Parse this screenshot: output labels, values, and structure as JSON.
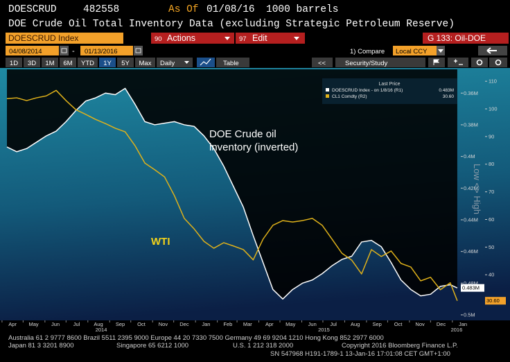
{
  "header": {
    "ticker": "DOESCRUD",
    "id": "482558",
    "as_of_label": "As Of",
    "as_of": "01/08/16",
    "units": "1000 barrels",
    "title": "DOE Crude Oil Total Inventory Data (excluding Strategic Petroleum Reserve)"
  },
  "toolbar": {
    "security": "DOESCRUD Index",
    "actions_num": "90",
    "actions": "Actions",
    "edit_num": "97",
    "edit": "Edit",
    "page": "G 133: Oil-DOE",
    "start": "04/08/2014",
    "dash": "-",
    "end": "01/13/2016",
    "compare": "1) Compare",
    "currency": "Local CCY",
    "ranges": [
      "1D",
      "3D",
      "1M",
      "6M",
      "YTD",
      "1Y",
      "5Y",
      "Max"
    ],
    "active_range": "1Y",
    "frequency": "Daily",
    "table": "Table",
    "back": "<<",
    "study": "Security/Study"
  },
  "chart_data": {
    "type": "line",
    "legend_title": "Last Price",
    "axis_note": "Low <> High",
    "xlim": [
      "2014-04-08",
      "2016-01-13"
    ],
    "xticks": [
      {
        "value": "2014-04-01",
        "label": "Apr"
      },
      {
        "value": "2014-05-01",
        "label": "May"
      },
      {
        "value": "2014-06-01",
        "label": "Jun"
      },
      {
        "value": "2014-07-01",
        "label": "Jul"
      },
      {
        "value": "2014-08-01",
        "label": "Aug"
      },
      {
        "value": "2014-09-01",
        "label": "Sep"
      },
      {
        "value": "2014-10-01",
        "label": "Oct"
      },
      {
        "value": "2014-11-01",
        "label": "Nov"
      },
      {
        "value": "2014-12-01",
        "label": "Dec"
      },
      {
        "value": "2015-01-01",
        "label": "Jan"
      },
      {
        "value": "2015-02-01",
        "label": "Feb"
      },
      {
        "value": "2015-03-01",
        "label": "Mar"
      },
      {
        "value": "2015-04-01",
        "label": "Apr"
      },
      {
        "value": "2015-05-01",
        "label": "May"
      },
      {
        "value": "2015-06-01",
        "label": "Jun"
      },
      {
        "value": "2015-07-01",
        "label": "Jul"
      },
      {
        "value": "2015-08-01",
        "label": "Aug"
      },
      {
        "value": "2015-09-01",
        "label": "Sep"
      },
      {
        "value": "2015-10-01",
        "label": "Oct"
      },
      {
        "value": "2015-11-01",
        "label": "Nov"
      },
      {
        "value": "2015-12-01",
        "label": "Dec"
      },
      {
        "value": "2016-01-01",
        "label": "Jan"
      }
    ],
    "years": [
      "2014",
      "2015",
      "2016"
    ],
    "ylim": [
      0.345,
      0.5035
    ],
    "y_inverted": true,
    "yticks": [
      {
        "value": 0.36,
        "label": "0.36M"
      },
      {
        "value": 0.38,
        "label": "0.38M"
      },
      {
        "value": 0.4,
        "label": "0.4M"
      },
      {
        "value": 0.42,
        "label": "0.42M"
      },
      {
        "value": 0.44,
        "label": "0.44M"
      },
      {
        "value": 0.46,
        "label": "0.46M"
      },
      {
        "value": 0.48,
        "label": "0.48M"
      },
      {
        "value": 0.5,
        "label": "0.5M"
      }
    ],
    "y2lim": [
      23.5,
      114.3
    ],
    "y2ticks": [
      110,
      100,
      90,
      80,
      70,
      60,
      50,
      40,
      30
    ],
    "grid": false,
    "x": [
      "2014-04-08",
      "2014-04-22",
      "2014-05-06",
      "2014-05-20",
      "2014-06-03",
      "2014-06-17",
      "2014-07-01",
      "2014-07-15",
      "2014-07-29",
      "2014-08-12",
      "2014-08-26",
      "2014-09-09",
      "2014-09-23",
      "2014-10-07",
      "2014-10-21",
      "2014-11-04",
      "2014-11-18",
      "2014-12-02",
      "2014-12-16",
      "2014-12-30",
      "2015-01-13",
      "2015-01-27",
      "2015-02-10",
      "2015-02-24",
      "2015-03-10",
      "2015-03-24",
      "2015-04-07",
      "2015-04-21",
      "2015-05-05",
      "2015-05-19",
      "2015-06-02",
      "2015-06-16",
      "2015-06-30",
      "2015-07-14",
      "2015-07-28",
      "2015-08-11",
      "2015-08-25",
      "2015-09-08",
      "2015-09-22",
      "2015-10-06",
      "2015-10-20",
      "2015-11-03",
      "2015-11-17",
      "2015-12-01",
      "2015-12-15",
      "2015-12-29",
      "2016-01-08"
    ],
    "series": [
      {
        "name": "DOESCRUD Index - on 1/8/16 (R1)",
        "color": "#ffffff",
        "axis": "y",
        "last_label": "0.483M",
        "values": [
          0.394,
          0.397,
          0.395,
          0.391,
          0.387,
          0.384,
          0.378,
          0.371,
          0.365,
          0.363,
          0.36,
          0.361,
          0.357,
          0.367,
          0.378,
          0.38,
          0.379,
          0.378,
          0.38,
          0.381,
          0.387,
          0.395,
          0.406,
          0.419,
          0.432,
          0.45,
          0.467,
          0.484,
          0.49,
          0.484,
          0.48,
          0.478,
          0.474,
          0.469,
          0.465,
          0.463,
          0.454,
          0.453,
          0.457,
          0.467,
          0.478,
          0.484,
          0.488,
          0.487,
          0.482,
          0.481,
          0.483
        ]
      },
      {
        "name": "CL1 Comdty (R2)",
        "color": "#e0b21a",
        "axis": "y2",
        "last_label": "30.60",
        "values": [
          103.7,
          104,
          103,
          104,
          104.7,
          106.7,
          103,
          99.7,
          98,
          96.2,
          94.7,
          93,
          91.7,
          86.7,
          80.4,
          78,
          75.4,
          68.6,
          60.4,
          56.6,
          52.1,
          49.6,
          51.6,
          50.4,
          49.1,
          45.4,
          52.9,
          57.9,
          59.6,
          59.1,
          59.6,
          60.4,
          57.9,
          52.9,
          47.8,
          45.3,
          40.3,
          49.1,
          46.6,
          48.6,
          44.1,
          42.8,
          37.8,
          39.1,
          34.6,
          37.1,
          30.6
        ]
      }
    ],
    "annotations": [
      {
        "lines": [
          "DOE Crude oil",
          "inventory (inverted)"
        ],
        "color": "#ffffff"
      },
      {
        "lines": [
          "WTI"
        ],
        "color": "#f2d21a"
      }
    ]
  },
  "footer": {
    "line1": "Australia 61 2 9777 8600 Brazil 5511 2395 9000 Europe 44 20 7330 7500 Germany 49 69 9204 1210 Hong Kong 852 2977 6000",
    "line2": [
      "Japan 81 3 3201 8900",
      "Singapore 65 6212 1000",
      "U.S. 1 212 318 2000",
      "Copyright 2016 Bloomberg Finance L.P."
    ],
    "line3": "SN 547968 H191-1789-1 13-Jan-16 17:01:08 CET  GMT+1:00"
  }
}
